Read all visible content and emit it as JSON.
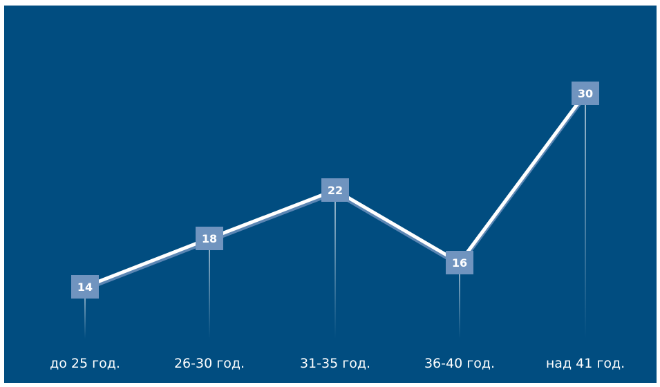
{
  "colors": {
    "background": "#014d80",
    "line": "#ffffff",
    "line_shadow": "#5b86b4",
    "marker": "#7094bf",
    "stem": "#ffffff"
  },
  "chart_data": {
    "type": "line",
    "categories": [
      "до 25 год.",
      "26-30 год.",
      "31-35 год.",
      "36-40 год.",
      "над 41 год."
    ],
    "values": [
      14,
      18,
      22,
      16,
      30
    ],
    "data_labels": [
      "14",
      "18",
      "22",
      "16",
      "30"
    ],
    "title": "",
    "xlabel": "",
    "ylabel": "",
    "ylim": [
      0,
      34
    ],
    "grid": false,
    "legend": "none"
  }
}
